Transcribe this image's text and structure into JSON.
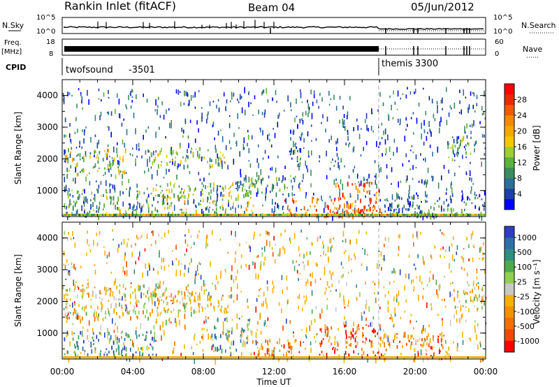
{
  "header": {
    "title": "Rankin Inlet (fitACF)",
    "beam": "Beam 04",
    "date": "05/Jun/2012"
  },
  "strips": {
    "nsky_label": "N.Sky",
    "nsky_ticks": [
      "10^5",
      "10^0"
    ],
    "nsearch_label": "N.Search",
    "nsearch_ticks": [
      "10^5",
      "10^0"
    ],
    "freq_label": "Freq.",
    "freq_unit": "[MHz]",
    "freq_ticks": [
      "18",
      "8"
    ],
    "nave_label": "Nave",
    "nave_ticks": [
      "60",
      "0"
    ],
    "cpid_label": "CPID",
    "cpid_segments": [
      {
        "name": "twofsound",
        "id": "-3501",
        "start_hour": 0,
        "end_hour": 18
      },
      {
        "name": "themis",
        "id": "3300",
        "start_hour": 18,
        "end_hour": 24
      }
    ]
  },
  "chart_data": [
    {
      "type": "heatmap",
      "panel": "power",
      "ylabel": "Slant Range [km]",
      "xlim_hours": [
        0,
        24
      ],
      "ylim": [
        180,
        4500
      ],
      "yticks": [
        "1000",
        "2000",
        "3000",
        "4000"
      ],
      "colorbar": {
        "label": "Power [dB]",
        "ticks": [
          "4",
          "8",
          "12",
          "16",
          "20",
          "24",
          "28"
        ],
        "colors": [
          "#0000ff",
          "#1f3fa8",
          "#2e6f96",
          "#3c8c5e",
          "#5cb23a",
          "#9ccf33",
          "#f4c800",
          "#f6a800",
          "#f48a00",
          "#f05a00",
          "#e82a00",
          "#ff0000"
        ]
      },
      "regions": [
        {
          "t0": 0.1,
          "t1": 3.6,
          "r0": 1500,
          "r1": 2400,
          "level": 0.45
        },
        {
          "t0": 0.1,
          "t1": 5.8,
          "r0": 200,
          "r1": 1100,
          "level": 0.35
        },
        {
          "t0": 4.8,
          "t1": 9.2,
          "r0": 1800,
          "r1": 2400,
          "level": 0.4
        },
        {
          "t0": 5.5,
          "t1": 10.8,
          "r0": 300,
          "r1": 1300,
          "level": 0.45
        },
        {
          "t0": 9.8,
          "t1": 13.5,
          "r0": 900,
          "r1": 1500,
          "level": 0.3
        },
        {
          "t0": 12.5,
          "t1": 17.8,
          "r0": 200,
          "r1": 800,
          "level": 0.8
        },
        {
          "t0": 15.4,
          "t1": 18.0,
          "r0": 300,
          "r1": 1300,
          "level": 0.75
        },
        {
          "t0": 18.2,
          "t1": 23.9,
          "r0": 200,
          "r1": 900,
          "level": 0.2
        },
        {
          "t0": 21.8,
          "t1": 23.2,
          "r0": 2000,
          "r1": 2800,
          "level": 0.3
        },
        {
          "t0": 12.8,
          "t1": 13.7,
          "r0": 1800,
          "r1": 3300,
          "level": 0.2
        }
      ]
    },
    {
      "type": "heatmap",
      "panel": "velocity",
      "ylabel": "Slant Range [km]",
      "xlabel": "Time UT",
      "xlim_hours": [
        0,
        24
      ],
      "xticks": [
        "00:00",
        "04:00",
        "08:00",
        "12:00",
        "16:00",
        "20:00",
        "00:00"
      ],
      "ylim": [
        180,
        4500
      ],
      "yticks": [
        "1000",
        "2000",
        "3000",
        "4000"
      ],
      "colorbar": {
        "label": "Velocity [m s⁻¹]",
        "ticks": [
          "1000",
          "500",
          "100",
          "25",
          "-25",
          "-100",
          "-500",
          "-1000"
        ],
        "colors": [
          "#2f3fbf",
          "#2f6fa8",
          "#2f8f7f",
          "#4faa4f",
          "#8fd04f",
          "#c8c8c8",
          "#f5b000",
          "#f59000",
          "#f07000",
          "#ef4b00",
          "#ff0000"
        ]
      },
      "regions": [
        {
          "t0": 0.1,
          "t1": 6.0,
          "r0": 1500,
          "r1": 2600,
          "level": 0.55
        },
        {
          "t0": 0.1,
          "t1": 5.2,
          "r0": 300,
          "r1": 1100,
          "level": 0.2
        },
        {
          "t0": 5.0,
          "t1": 9.2,
          "r0": 1700,
          "r1": 2600,
          "level": 0.55
        },
        {
          "t0": 8.5,
          "t1": 10.6,
          "r0": 500,
          "r1": 1500,
          "level": 0.25
        },
        {
          "t0": 10.5,
          "t1": 13.5,
          "r0": 200,
          "r1": 800,
          "level": 0.8
        },
        {
          "t0": 14.5,
          "t1": 18.0,
          "r0": 300,
          "r1": 1300,
          "level": 0.85
        },
        {
          "t0": 18.0,
          "t1": 22.0,
          "r0": 200,
          "r1": 1000,
          "level": 0.75
        },
        {
          "t0": 22.0,
          "t1": 23.9,
          "r0": 1800,
          "r1": 2700,
          "level": 0.5
        }
      ]
    }
  ]
}
